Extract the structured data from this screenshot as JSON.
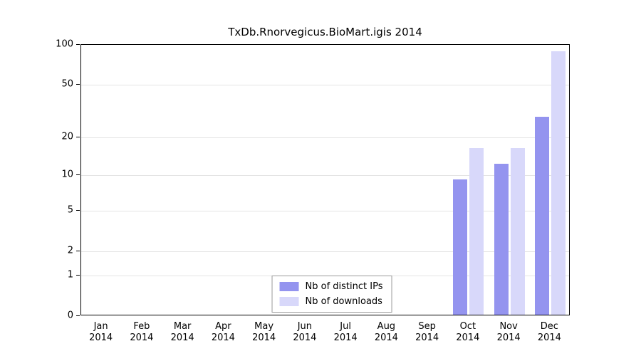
{
  "chart_data": {
    "type": "bar",
    "title": "TxDb.Rnorvegicus.BioMart.igis 2014",
    "y_scale": "log1p",
    "ylim": [
      0,
      100
    ],
    "y_ticks": [
      0,
      1,
      2,
      5,
      10,
      20,
      50,
      100
    ],
    "grid": true,
    "months": [
      {
        "label": "Jan",
        "year": "2014"
      },
      {
        "label": "Feb",
        "year": "2014"
      },
      {
        "label": "Mar",
        "year": "2014"
      },
      {
        "label": "Apr",
        "year": "2014"
      },
      {
        "label": "May",
        "year": "2014"
      },
      {
        "label": "Jun",
        "year": "2014"
      },
      {
        "label": "Jul",
        "year": "2014"
      },
      {
        "label": "Aug",
        "year": "2014"
      },
      {
        "label": "Sep",
        "year": "2014"
      },
      {
        "label": "Oct",
        "year": "2014"
      },
      {
        "label": "Nov",
        "year": "2014"
      },
      {
        "label": "Dec",
        "year": "2014"
      }
    ],
    "series": [
      {
        "name": "Nb of distinct IPs",
        "color": "#9494ef",
        "values": [
          0,
          0,
          0,
          0,
          0,
          0,
          0,
          0,
          0,
          9,
          12,
          28
        ]
      },
      {
        "name": "Nb of downloads",
        "color": "#d8d8fa",
        "values": [
          0,
          0,
          0,
          0,
          0,
          0,
          0,
          0,
          0,
          16,
          16,
          87
        ]
      }
    ],
    "legend": {
      "position": "bottom-center",
      "entries": [
        "Nb of distinct IPs",
        "Nb of downloads"
      ]
    }
  }
}
